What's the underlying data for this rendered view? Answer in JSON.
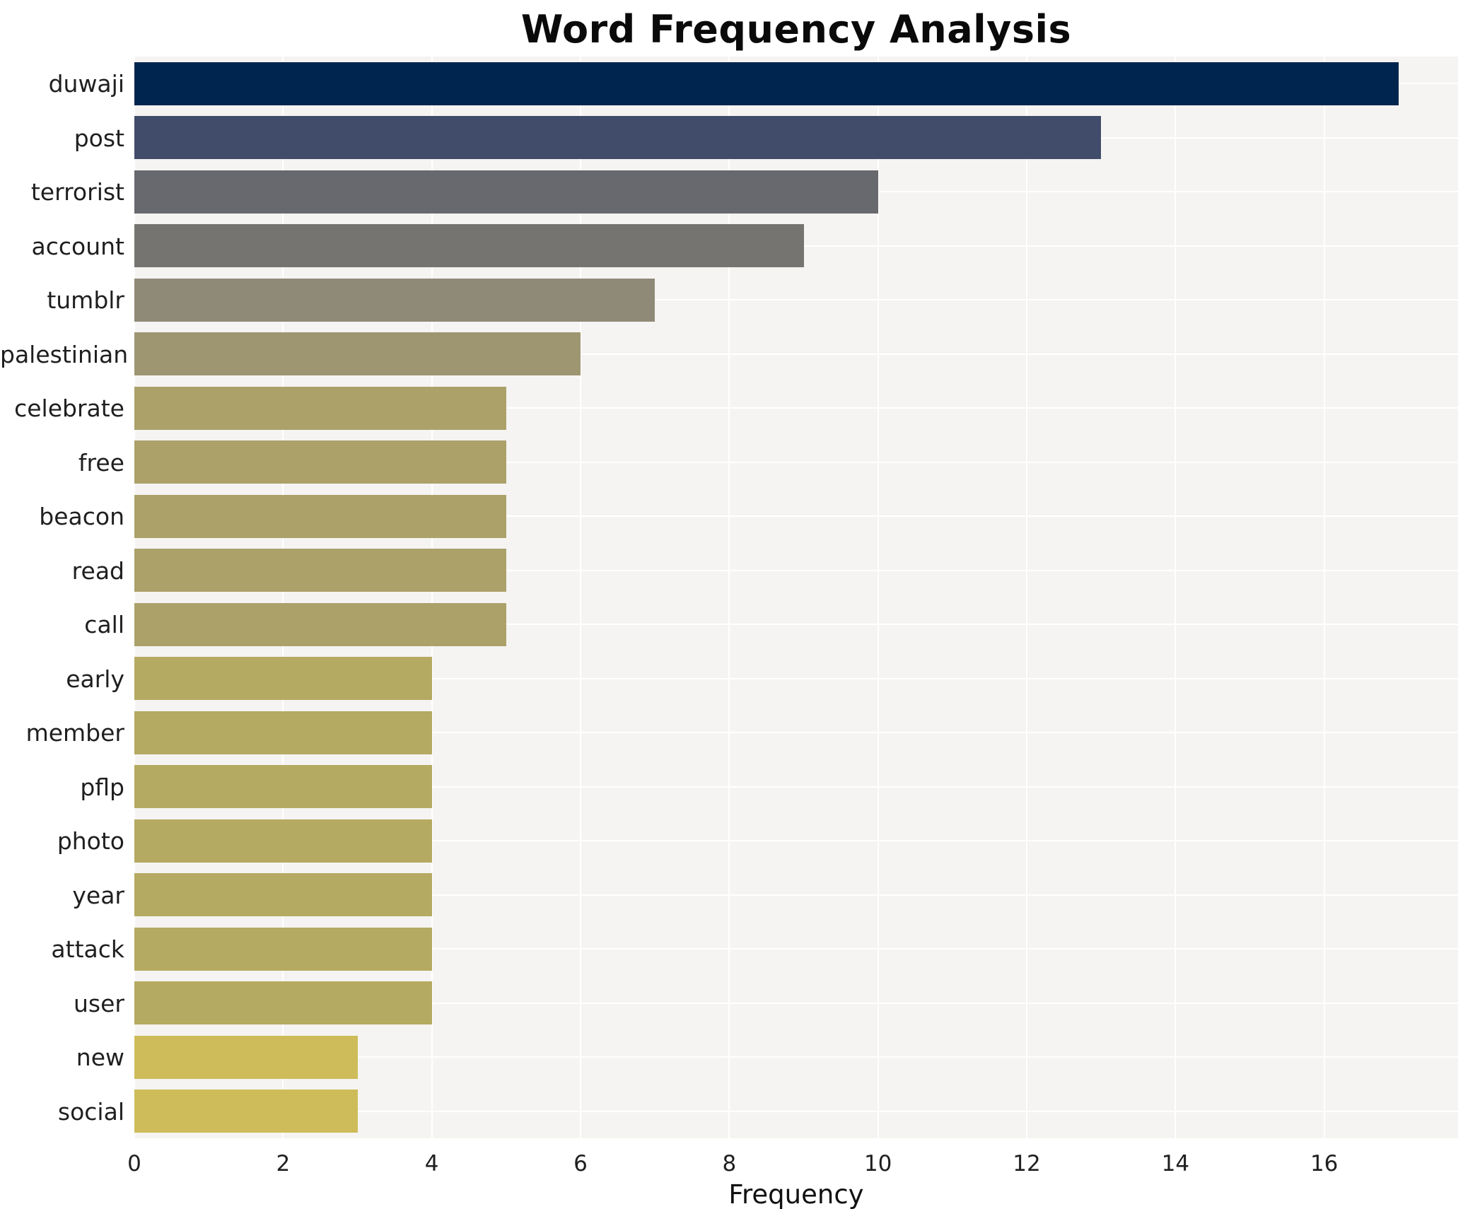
{
  "title": "Word Frequency Analysis",
  "chart_data": {
    "type": "bar",
    "orientation": "horizontal",
    "title": "Word Frequency Analysis",
    "xlabel": "Frequency",
    "ylabel": "",
    "categories": [
      "duwaji",
      "post",
      "terrorist",
      "account",
      "tumblr",
      "palestinian",
      "celebrate",
      "free",
      "beacon",
      "read",
      "call",
      "early",
      "member",
      "pflp",
      "photo",
      "year",
      "attack",
      "user",
      "new",
      "social"
    ],
    "values": [
      17,
      13,
      10,
      9,
      7,
      6,
      5,
      5,
      5,
      5,
      5,
      4,
      4,
      4,
      4,
      4,
      4,
      4,
      3,
      3
    ],
    "bar_colors": [
      "#00254e",
      "#414c6b",
      "#67696e",
      "#767470",
      "#8f8977",
      "#9e9671",
      "#aba169",
      "#aba169",
      "#aba169",
      "#aba169",
      "#aba169",
      "#b5aa61",
      "#b5aa61",
      "#b5aa61",
      "#b5aa61",
      "#b5aa61",
      "#b5aa61",
      "#b5aa61",
      "#cdbc59",
      "#cdbc59"
    ],
    "xlim": [
      0,
      17.8
    ],
    "xticks": [
      0,
      2,
      4,
      6,
      8,
      10,
      12,
      14,
      16
    ],
    "grid": true,
    "legend": "none",
    "plot_background_color": "#f5f4f2",
    "gridline_color": "#ffffff",
    "text_color": "#1f1f1f",
    "bar_height_fraction": 0.8
  }
}
